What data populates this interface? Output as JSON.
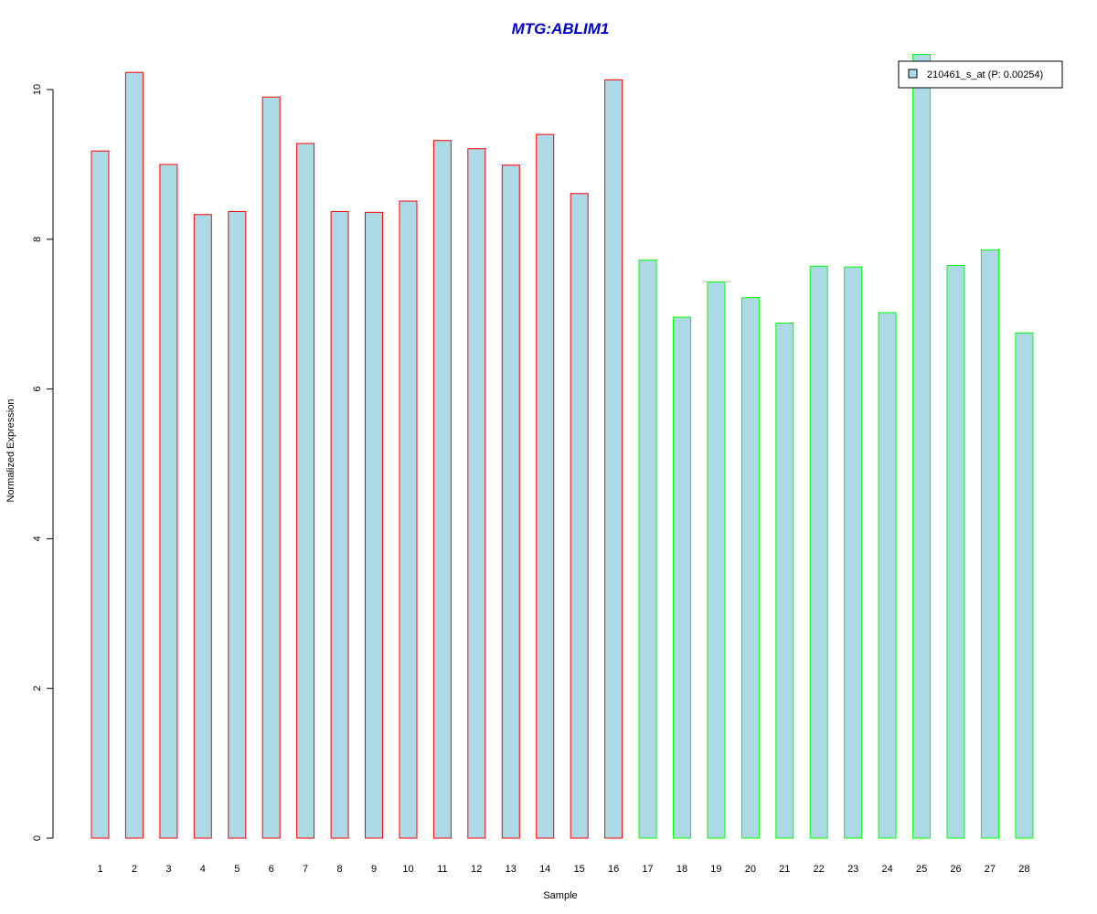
{
  "chart_data": {
    "type": "bar",
    "title": "MTG:ABLIM1",
    "xlabel": "Sample",
    "ylabel": "Normalized Expression",
    "categories": [
      "1",
      "2",
      "3",
      "4",
      "5",
      "6",
      "7",
      "8",
      "9",
      "10",
      "11",
      "12",
      "13",
      "14",
      "15",
      "16",
      "17",
      "18",
      "19",
      "20",
      "21",
      "22",
      "23",
      "24",
      "25",
      "26",
      "27",
      "28"
    ],
    "series": [
      {
        "name": "210461_s_at (P: 0.00254)",
        "values": [
          9.18,
          10.23,
          9.0,
          8.33,
          8.37,
          9.9,
          9.28,
          8.37,
          8.36,
          8.51,
          9.32,
          9.21,
          8.99,
          9.4,
          8.61,
          10.13,
          7.72,
          6.96,
          7.43,
          7.22,
          6.88,
          7.64,
          7.63,
          7.02,
          10.47,
          7.65,
          7.86,
          6.75
        ]
      }
    ],
    "ylim": [
      0,
      10.5
    ],
    "yticks": [
      0,
      2,
      4,
      6,
      8,
      10
    ],
    "grid": false,
    "legend_position": "top-right",
    "colors": {
      "bar_fill": "#add8e6",
      "group_1_border": "#ff0000",
      "group_2_border": "#00ff00",
      "title": "#0000cd"
    },
    "group_1_count": 16
  }
}
